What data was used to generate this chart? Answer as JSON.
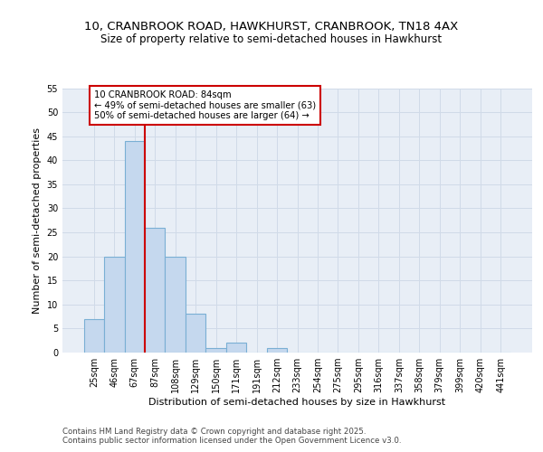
{
  "title_line1": "10, CRANBROOK ROAD, HAWKHURST, CRANBROOK, TN18 4AX",
  "title_line2": "Size of property relative to semi-detached houses in Hawkhurst",
  "xlabel": "Distribution of semi-detached houses by size in Hawkhurst",
  "ylabel": "Number of semi-detached properties",
  "footer": "Contains HM Land Registry data © Crown copyright and database right 2025.\nContains public sector information licensed under the Open Government Licence v3.0.",
  "categories": [
    "25sqm",
    "46sqm",
    "67sqm",
    "87sqm",
    "108sqm",
    "129sqm",
    "150sqm",
    "171sqm",
    "191sqm",
    "212sqm",
    "233sqm",
    "254sqm",
    "275sqm",
    "295sqm",
    "316sqm",
    "337sqm",
    "358sqm",
    "379sqm",
    "399sqm",
    "420sqm",
    "441sqm"
  ],
  "values": [
    7,
    20,
    44,
    26,
    20,
    8,
    1,
    2,
    0,
    1,
    0,
    0,
    0,
    0,
    0,
    0,
    0,
    0,
    0,
    0,
    0
  ],
  "bar_color": "#c5d8ee",
  "bar_edge_color": "#7aafd4",
  "vline_color": "#cc0000",
  "annotation_title": "10 CRANBROOK ROAD: 84sqm",
  "annotation_line1": "← 49% of semi-detached houses are smaller (63)",
  "annotation_line2": "50% of semi-detached houses are larger (64) →",
  "annotation_box_color": "white",
  "annotation_box_edge": "#cc0000",
  "ylim": [
    0,
    55
  ],
  "yticks": [
    0,
    5,
    10,
    15,
    20,
    25,
    30,
    35,
    40,
    45,
    50,
    55
  ],
  "grid_color": "#d0dae8",
  "bg_color": "#e8eef6",
  "title_fontsize": 9.5,
  "subtitle_fontsize": 8.5,
  "axis_label_fontsize": 8,
  "tick_fontsize": 7,
  "footer_fontsize": 6.2,
  "vline_xindex": 2.5
}
